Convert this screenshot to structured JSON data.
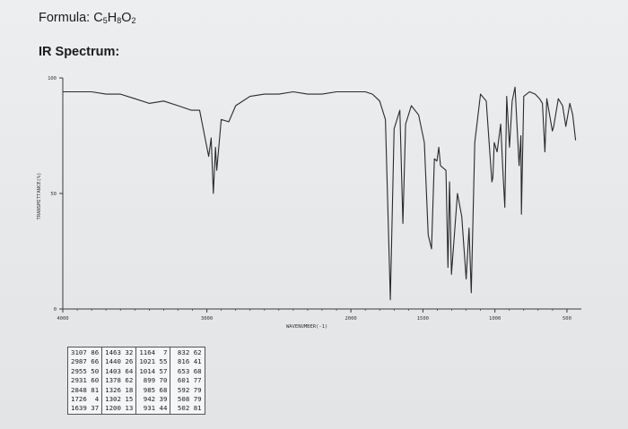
{
  "header": {
    "formula_label": "Formula: ",
    "formula_parts": [
      "C",
      "5",
      "H",
      "8",
      "O",
      "2"
    ],
    "spectrum_label": "IR Spectrum:"
  },
  "chart_data": {
    "type": "line",
    "ylabel": "TRANSMITTANCE(%)",
    "xlabel": "WAVENUMBER(-1)",
    "yticks": [
      {
        "value": 100,
        "label": "100"
      },
      {
        "value": 50,
        "label": "50"
      },
      {
        "value": 0,
        "label": "0"
      }
    ],
    "xticks": [
      {
        "value": 4000,
        "label": "4000"
      },
      {
        "value": 3000,
        "label": "3000"
      },
      {
        "value": 2000,
        "label": "2000"
      },
      {
        "value": 1500,
        "label": "1500"
      },
      {
        "value": 1000,
        "label": "1000"
      },
      {
        "value": 500,
        "label": "500"
      }
    ],
    "xlim": [
      4000,
      400
    ],
    "ylim": [
      0,
      100
    ],
    "grid": false,
    "series": [
      {
        "points": [
          [
            4000,
            94
          ],
          [
            3900,
            94
          ],
          [
            3800,
            94
          ],
          [
            3700,
            93
          ],
          [
            3600,
            93
          ],
          [
            3500,
            91
          ],
          [
            3400,
            89
          ],
          [
            3300,
            90
          ],
          [
            3200,
            88
          ],
          [
            3107,
            86
          ],
          [
            3050,
            86
          ],
          [
            2987,
            66
          ],
          [
            2970,
            74
          ],
          [
            2955,
            50
          ],
          [
            2940,
            70
          ],
          [
            2931,
            60
          ],
          [
            2900,
            82
          ],
          [
            2848,
            81
          ],
          [
            2800,
            88
          ],
          [
            2700,
            92
          ],
          [
            2600,
            93
          ],
          [
            2500,
            93
          ],
          [
            2400,
            94
          ],
          [
            2300,
            93
          ],
          [
            2200,
            93
          ],
          [
            2100,
            94
          ],
          [
            2000,
            94
          ],
          [
            1900,
            94
          ],
          [
            1850,
            93
          ],
          [
            1800,
            90
          ],
          [
            1760,
            82
          ],
          [
            1726,
            4
          ],
          [
            1700,
            78
          ],
          [
            1660,
            86
          ],
          [
            1639,
            37
          ],
          [
            1620,
            80
          ],
          [
            1580,
            88
          ],
          [
            1530,
            84
          ],
          [
            1490,
            72
          ],
          [
            1463,
            32
          ],
          [
            1440,
            26
          ],
          [
            1420,
            65
          ],
          [
            1403,
            64
          ],
          [
            1390,
            70
          ],
          [
            1378,
            62
          ],
          [
            1340,
            60
          ],
          [
            1326,
            18
          ],
          [
            1315,
            55
          ],
          [
            1302,
            15
          ],
          [
            1260,
            50
          ],
          [
            1230,
            40
          ],
          [
            1200,
            13
          ],
          [
            1180,
            35
          ],
          [
            1164,
            7
          ],
          [
            1140,
            72
          ],
          [
            1100,
            93
          ],
          [
            1060,
            90
          ],
          [
            1040,
            72
          ],
          [
            1021,
            55
          ],
          [
            1014,
            57
          ],
          [
            1005,
            72
          ],
          [
            985,
            68
          ],
          [
            960,
            80
          ],
          [
            945,
            60
          ],
          [
            931,
            44
          ],
          [
            918,
            92
          ],
          [
            899,
            70
          ],
          [
            880,
            90
          ],
          [
            860,
            96
          ],
          [
            832,
            62
          ],
          [
            820,
            75
          ],
          [
            816,
            41
          ],
          [
            800,
            92
          ],
          [
            760,
            94
          ],
          [
            720,
            93
          ],
          [
            690,
            91
          ],
          [
            670,
            89
          ],
          [
            653,
            68
          ],
          [
            640,
            91
          ],
          [
            601,
            77
          ],
          [
            592,
            79
          ],
          [
            560,
            91
          ],
          [
            530,
            88
          ],
          [
            508,
            79
          ],
          [
            502,
            81
          ],
          [
            480,
            89
          ],
          [
            460,
            84
          ],
          [
            440,
            73
          ]
        ]
      }
    ],
    "peak_table": [
      [
        "3107",
        "86"
      ],
      [
        "2987",
        "66"
      ],
      [
        "2955",
        "50"
      ],
      [
        "2931",
        "60"
      ],
      [
        "2848",
        "81"
      ],
      [
        "1726",
        "4"
      ],
      [
        "1639",
        "37"
      ],
      [
        "1463",
        "32"
      ],
      [
        "1440",
        "26"
      ],
      [
        "1403",
        "64"
      ],
      [
        "1378",
        "62"
      ],
      [
        "1326",
        "18"
      ],
      [
        "1302",
        "15"
      ],
      [
        "1200",
        "13"
      ],
      [
        "1164",
        "7"
      ],
      [
        "1021",
        "55"
      ],
      [
        "1014",
        "57"
      ],
      [
        "899",
        "70"
      ],
      [
        "985",
        "68"
      ],
      [
        "942",
        "39"
      ],
      [
        "931",
        "44"
      ],
      [
        "832",
        "62"
      ],
      [
        "816",
        "41"
      ],
      [
        "653",
        "68"
      ],
      [
        "601",
        "77"
      ],
      [
        "592",
        "79"
      ],
      [
        "508",
        "79"
      ],
      [
        "502",
        "81"
      ]
    ]
  },
  "colors": {
    "trace": "#2a2a2a",
    "frame": "#3a3a3a",
    "background": "#e8eaec"
  }
}
